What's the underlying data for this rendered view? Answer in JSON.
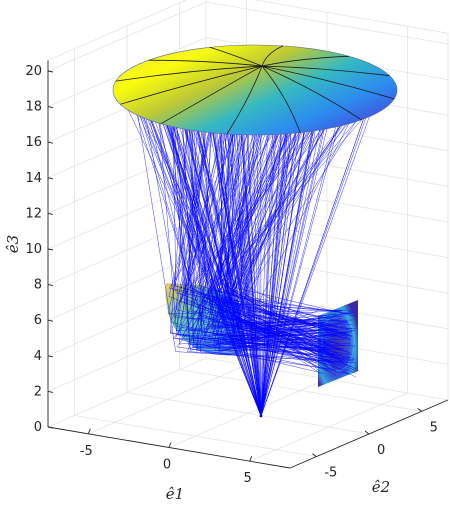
{
  "chart_data": {
    "type": "3d-ray-trace",
    "title": "",
    "axes": {
      "x": {
        "label": "ê1",
        "ticks": [
          "-5",
          "0",
          "5"
        ]
      },
      "y": {
        "label": "ê2",
        "ticks": [
          "-5",
          "0",
          "5"
        ]
      },
      "z": {
        "label": "ê3",
        "ticks": [
          "0",
          "2",
          "4",
          "6",
          "8",
          "10",
          "12",
          "14",
          "16",
          "18",
          "20"
        ],
        "zlim": [
          0,
          20
        ]
      }
    },
    "grid": true,
    "elements": [
      {
        "name": "Upper reflector",
        "kind": "surface",
        "colormap": "parula",
        "approx_height": 19
      },
      {
        "name": "Lower reflector",
        "kind": "surface",
        "colormap": "parula",
        "approx_height_range": [
          4,
          8
        ]
      },
      {
        "name": "Source point",
        "kind": "point",
        "approx_height": 0.5
      },
      {
        "name": "Target screen",
        "kind": "plane",
        "colormap": "parula",
        "approx_height_range": [
          3,
          8
        ]
      }
    ],
    "ray_color": "#0000ff",
    "colors": {
      "ray": "#0000ff",
      "axis": "#262626",
      "grid": "#e3e3e3",
      "surface_low": "#3e26a8",
      "surface_high": "#f9fb0e"
    }
  }
}
